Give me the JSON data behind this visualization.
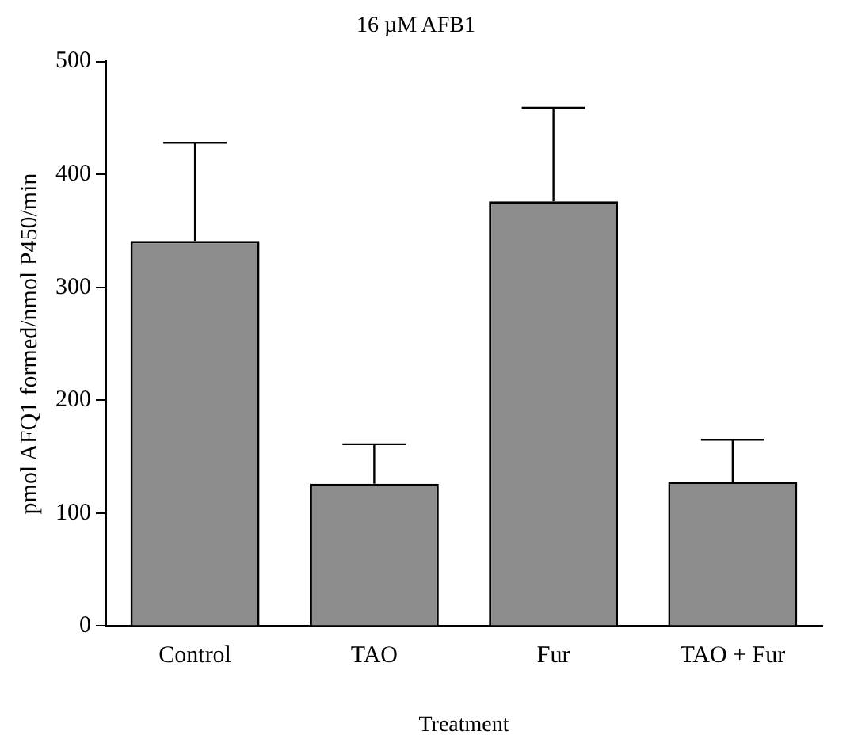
{
  "chart_data": {
    "type": "bar",
    "title": "16 µM AFB1",
    "xlabel": "Treatment",
    "ylabel": "pmol AFQ1 formed/nmol P450/min",
    "categories": [
      "Control",
      "TAO",
      "Fur",
      "TAO + Fur"
    ],
    "series": [
      {
        "color": "#8c8c8c",
        "values": [
          341,
          126,
          376,
          128
        ],
        "errors": [
          [
            341,
            428
          ],
          [
            126,
            161
          ],
          [
            376,
            459
          ],
          [
            128,
            165
          ]
        ]
      }
    ],
    "ylim": [
      0,
      500
    ],
    "yticks": [
      0,
      100,
      200,
      300,
      400,
      500
    ],
    "grid": false,
    "legend": false
  }
}
